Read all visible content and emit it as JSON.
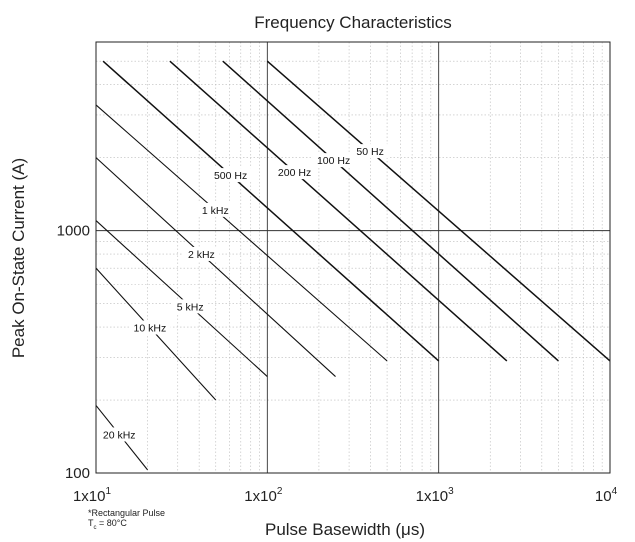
{
  "chart_data": {
    "type": "line",
    "title": "Frequency Characteristics",
    "xlabel": "Pulse Basewidth (μs)",
    "ylabel": "Peak On-State Current (A)",
    "x_scale": "log",
    "y_scale": "log",
    "xlim": [
      10,
      10000
    ],
    "ylim": [
      100,
      6000
    ],
    "x_ticks": [
      {
        "value": 10,
        "label": "1x10",
        "exp": "1"
      },
      {
        "value": 100,
        "label": "1x10",
        "exp": "2"
      },
      {
        "value": 1000,
        "label": "1x10",
        "exp": "3"
      },
      {
        "value": 10000,
        "label": "10",
        "exp": "4"
      }
    ],
    "y_ticks": [
      {
        "value": 100,
        "label": "100"
      },
      {
        "value": 1000,
        "label": "1000"
      }
    ],
    "grid": true,
    "series": [
      {
        "name": "50 Hz",
        "points": [
          [
            100,
            5000
          ],
          [
            10000,
            290
          ]
        ]
      },
      {
        "name": "100 Hz",
        "points": [
          [
            55,
            5000
          ],
          [
            5000,
            290
          ]
        ]
      },
      {
        "name": "200 Hz",
        "points": [
          [
            27,
            5000
          ],
          [
            2500,
            290
          ]
        ]
      },
      {
        "name": "500 Hz",
        "points": [
          [
            11,
            5000
          ],
          [
            1000,
            290
          ]
        ]
      },
      {
        "name": "1 kHz",
        "points": [
          [
            10,
            3300
          ],
          [
            500,
            290
          ]
        ]
      },
      {
        "name": "2 kHz",
        "points": [
          [
            10,
            2000
          ],
          [
            250,
            250
          ]
        ]
      },
      {
        "name": "5 kHz",
        "points": [
          [
            10,
            1100
          ],
          [
            100,
            250
          ]
        ]
      },
      {
        "name": "10 kHz",
        "points": [
          [
            10,
            700
          ],
          [
            50,
            200
          ]
        ]
      },
      {
        "name": "20 kHz",
        "points": [
          [
            10,
            190
          ],
          [
            20,
            103
          ]
        ]
      }
    ],
    "notes": {
      "line1": "*Rectangular Pulse",
      "line2_prefix": "T",
      "line2_sub": "c",
      "line2_suffix": " = 80°C"
    }
  }
}
